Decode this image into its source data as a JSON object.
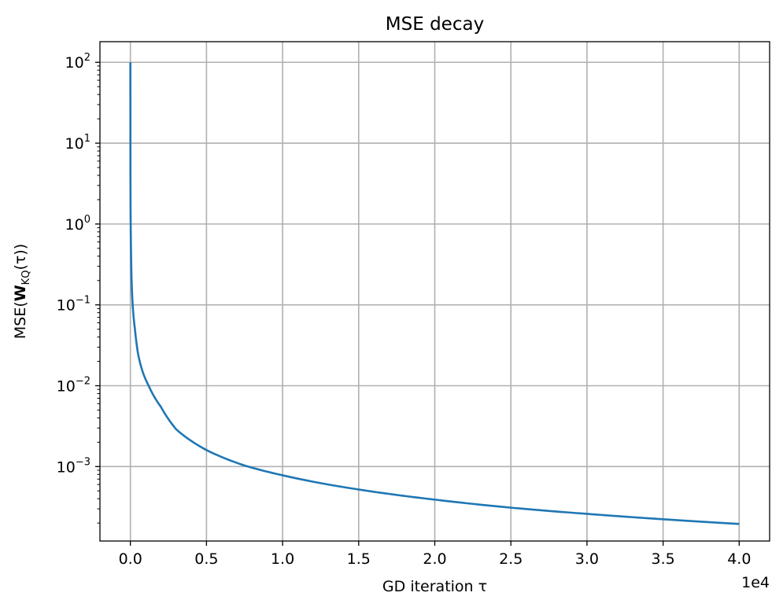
{
  "chart_data": {
    "type": "line",
    "title": "MSE decay",
    "xlabel": "GD iteration τ",
    "ylabel_parts": {
      "prefix": "MSE(",
      "bold": "W",
      "subscript": "KQ",
      "suffix": "(τ))"
    },
    "x_offset_label": "1e4",
    "y_scale": "log",
    "grid": true,
    "xlim": [
      -2000,
      42000
    ],
    "ylim": [
      0.00012,
      180
    ],
    "x_ticks": [
      {
        "value": 0,
        "label": "0.0"
      },
      {
        "value": 5000,
        "label": "0.5"
      },
      {
        "value": 10000,
        "label": "1.0"
      },
      {
        "value": 15000,
        "label": "1.5"
      },
      {
        "value": 20000,
        "label": "2.0"
      },
      {
        "value": 25000,
        "label": "2.5"
      },
      {
        "value": 30000,
        "label": "3.0"
      },
      {
        "value": 35000,
        "label": "3.5"
      },
      {
        "value": 40000,
        "label": "4.0"
      }
    ],
    "y_ticks": [
      {
        "value": 100,
        "base": "10",
        "exp": "2"
      },
      {
        "value": 10,
        "base": "10",
        "exp": "1"
      },
      {
        "value": 1,
        "base": "10",
        "exp": "0"
      },
      {
        "value": 0.1,
        "base": "10",
        "exp": "−1"
      },
      {
        "value": 0.01,
        "base": "10",
        "exp": "−2"
      },
      {
        "value": 0.001,
        "base": "10",
        "exp": "−3"
      }
    ],
    "series": [
      {
        "color": "#1f77b4",
        "x": [
          0,
          5,
          10,
          20,
          40,
          80,
          150,
          300,
          500,
          800,
          1200,
          2000,
          3000,
          5000,
          7500,
          10000,
          15000,
          20000,
          25000,
          30000,
          35000,
          40000
        ],
        "y": [
          100,
          4,
          2,
          1,
          0.5,
          0.2,
          0.1,
          0.05,
          0.025,
          0.015,
          0.01,
          0.0055,
          0.0029,
          0.0016,
          0.00103,
          0.00078,
          0.00052,
          0.00039,
          0.00031,
          0.00026,
          0.000223,
          0.000195
        ]
      }
    ]
  }
}
